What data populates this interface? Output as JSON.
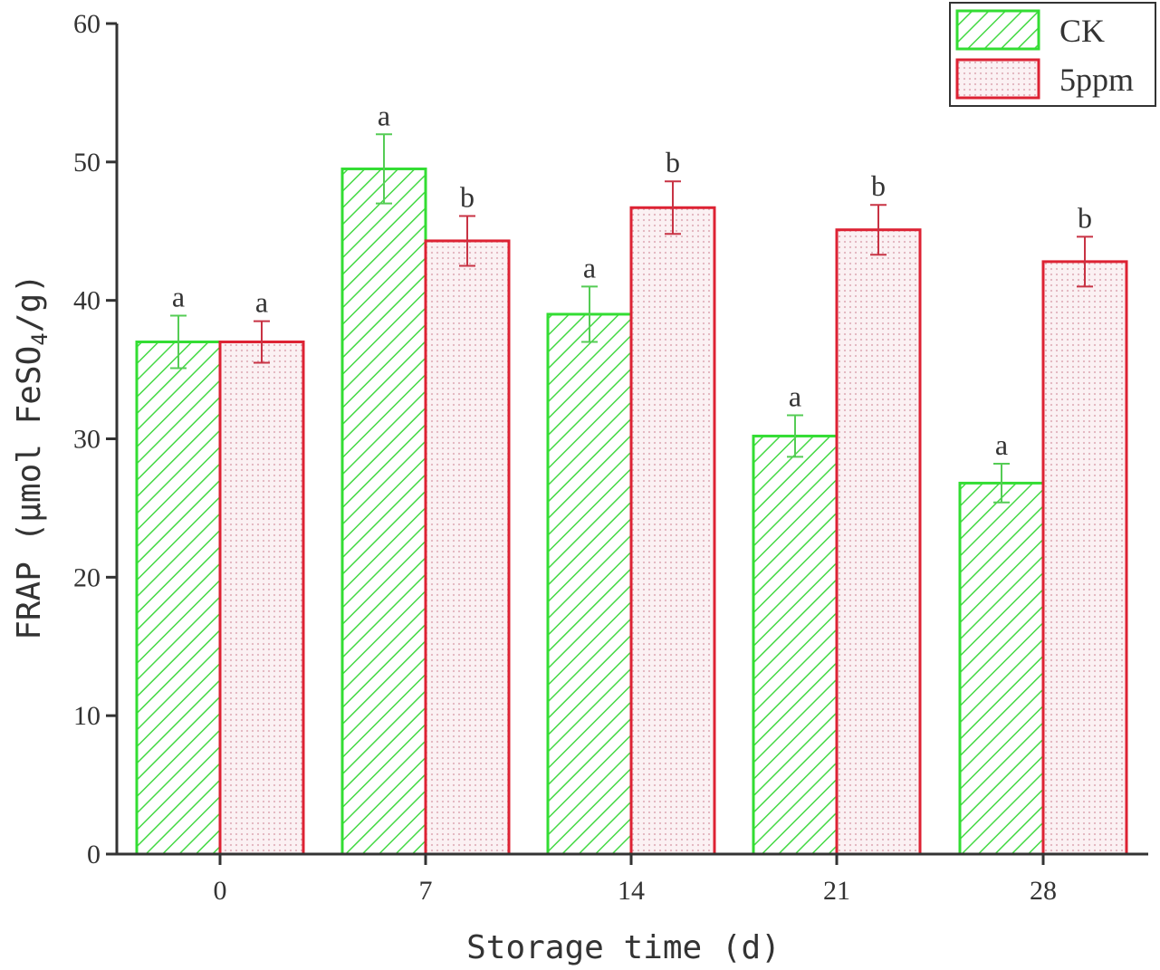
{
  "chart_data": {
    "type": "bar",
    "title": "",
    "xlabel": "Storage time (d)",
    "ylabel_parts": [
      "FRAP (μmol FeSO",
      "4",
      "/g)"
    ],
    "categories": [
      "0",
      "7",
      "14",
      "21",
      "28"
    ],
    "ylim": [
      0,
      60
    ],
    "yticks": [
      "0",
      "10",
      "20",
      "30",
      "40",
      "50",
      "60"
    ],
    "grid": false,
    "legend_position": "top-right",
    "series": [
      {
        "name": "CK",
        "color": "#33dd33",
        "pattern": "diagonal-hatch",
        "values": [
          37.0,
          49.5,
          39.0,
          30.2,
          26.8
        ],
        "errors": [
          1.9,
          2.5,
          2.0,
          1.5,
          1.4
        ],
        "letters": [
          "a",
          "a",
          "a",
          "a",
          "a"
        ]
      },
      {
        "name": "5ppm",
        "color": "#dd2233",
        "pattern": "dots",
        "values": [
          37.0,
          44.3,
          46.7,
          45.1,
          42.8
        ],
        "errors": [
          1.5,
          1.8,
          1.9,
          1.8,
          1.8
        ],
        "letters": [
          "a",
          "b",
          "b",
          "b",
          "b"
        ]
      }
    ]
  }
}
